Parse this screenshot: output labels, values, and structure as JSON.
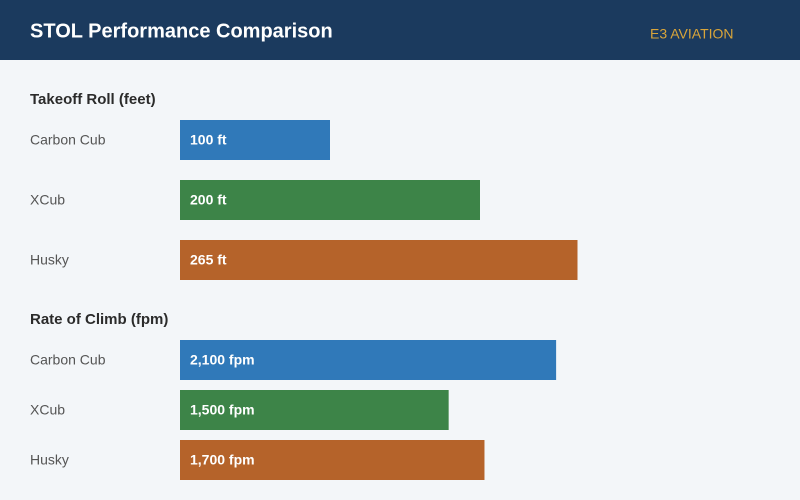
{
  "header": {
    "title": "STOL Performance Comparison",
    "brand": "E3 AVIATION"
  },
  "chart_data": [
    {
      "type": "bar",
      "orientation": "horizontal",
      "title": "Takeoff Roll (feet)",
      "categories": [
        "Carbon Cub",
        "XCub",
        "Husky"
      ],
      "values": [
        100,
        200,
        265
      ],
      "value_labels": [
        "100 ft",
        "200 ft",
        "265 ft"
      ],
      "colors": [
        "#3079b9",
        "#3d8448",
        "#b5632a"
      ],
      "xlim": [
        0,
        400
      ]
    },
    {
      "type": "bar",
      "orientation": "horizontal",
      "title": "Rate of Climb (fpm)",
      "categories": [
        "Carbon Cub",
        "XCub",
        "Husky"
      ],
      "values": [
        2100,
        1500,
        1700
      ],
      "value_labels": [
        "2,100 fpm",
        "1,500 fpm",
        "1,700 fpm"
      ],
      "colors": [
        "#3079b9",
        "#3d8448",
        "#b5632a"
      ],
      "xlim": [
        0,
        3350
      ]
    }
  ]
}
